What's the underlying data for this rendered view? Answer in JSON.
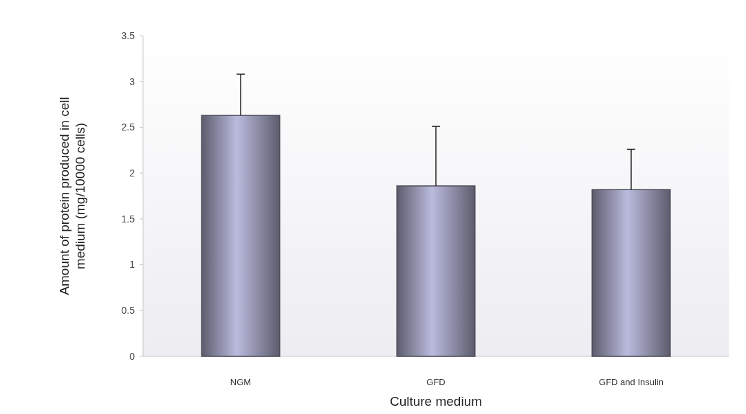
{
  "chart_data": {
    "type": "bar",
    "xlabel": "Culture medium",
    "ylabel": "Amount of protein produced in cell medium (mg/10000 cells)",
    "categories": [
      "NGM",
      "GFD",
      "GFD and Insulin"
    ],
    "values": [
      2.63,
      1.86,
      1.82
    ],
    "errors": [
      [
        2.63,
        3.08
      ],
      [
        1.86,
        2.51
      ],
      [
        1.82,
        2.26
      ]
    ],
    "color": "#4a4a58",
    "ylim": [
      0,
      3.5
    ],
    "yticks": [
      0,
      0.5,
      1,
      1.5,
      2,
      2.5,
      3,
      3.5
    ],
    "grid": false
  }
}
